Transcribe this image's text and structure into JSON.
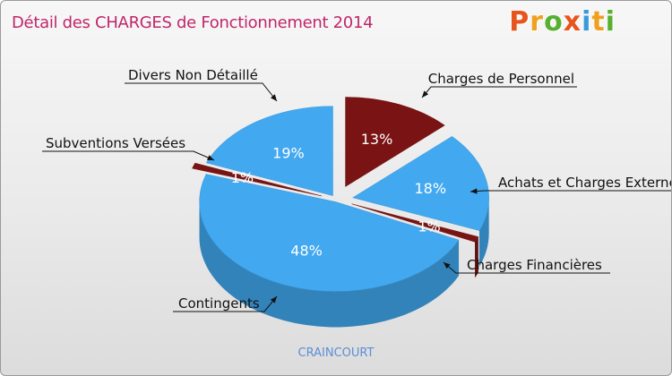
{
  "chart_data": {
    "type": "pie",
    "title": "Détail des CHARGES de Fonctionnement 2014",
    "subtitle": "CRAINCOURT",
    "slices": [
      {
        "label": "Charges de Personnel",
        "value": 13,
        "color": "#7a1414"
      },
      {
        "label": "Achats et Charges Externes",
        "value": 18,
        "color": "#42a8f0"
      },
      {
        "label": "Charges Financières",
        "value": 1,
        "color": "#7a1414"
      },
      {
        "label": "Contingents",
        "value": 48,
        "color": "#42a8f0"
      },
      {
        "label": "Subventions Versées",
        "value": 1,
        "color": "#7a1414"
      },
      {
        "label": "Divers Non Détaillé",
        "value": 19,
        "color": "#42a8f0"
      }
    ],
    "value_suffix": "%"
  },
  "brand": {
    "letters": [
      "P",
      "r",
      "o",
      "x",
      "i",
      "t",
      "i"
    ],
    "colors": [
      "#e8541e",
      "#f0a020",
      "#58b030",
      "#e8541e",
      "#3a9ad9",
      "#f0a020",
      "#58b030"
    ]
  }
}
